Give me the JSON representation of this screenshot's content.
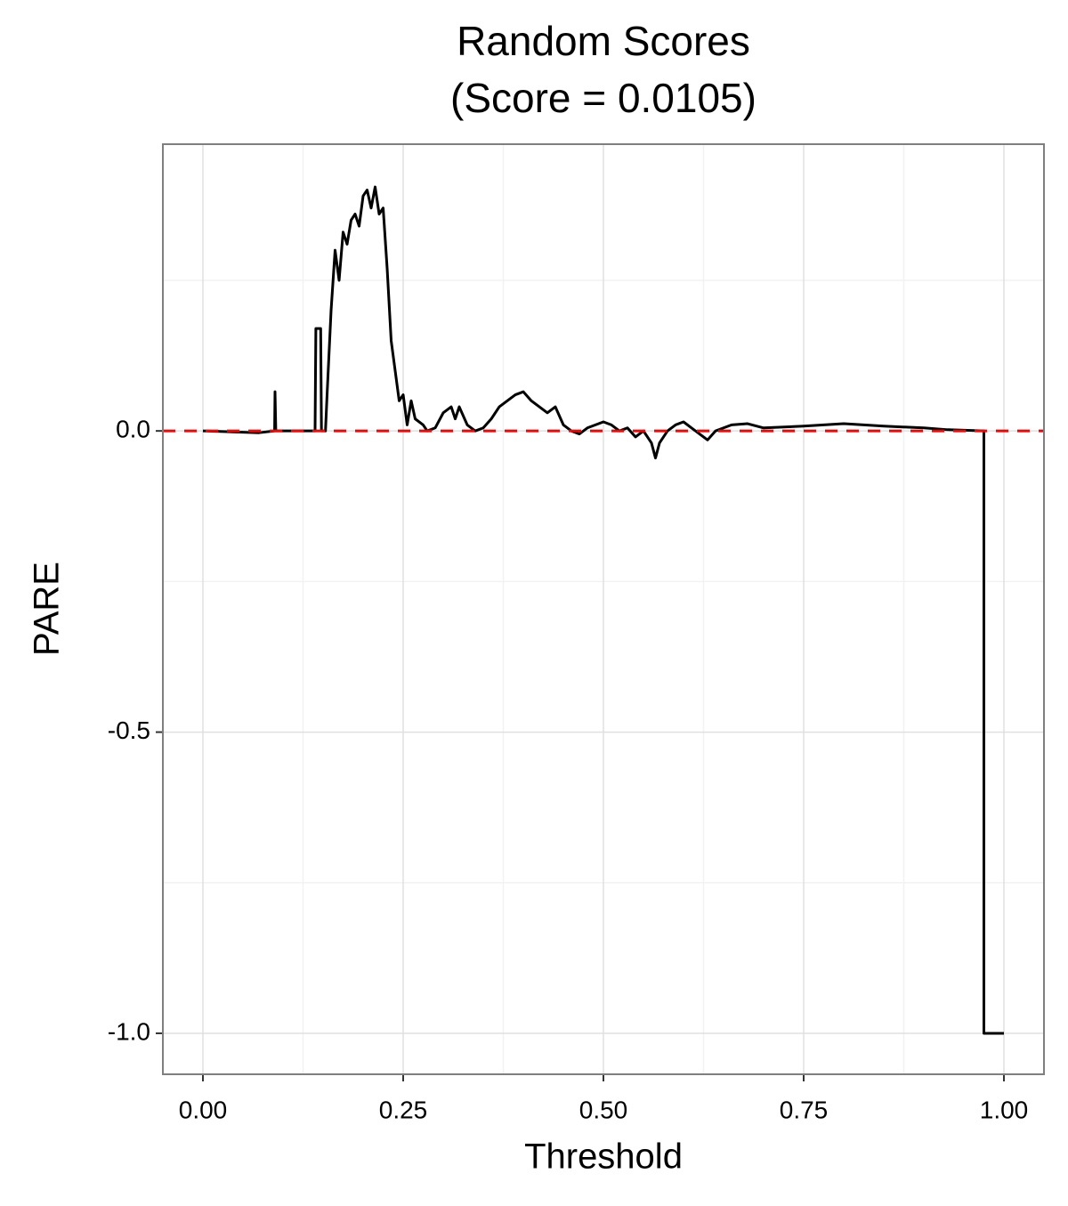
{
  "chart_data": {
    "type": "line",
    "title": "Random Scores",
    "subtitle": "(Score = 0.0105)",
    "x_label": "Threshold",
    "y_label": "PARE",
    "xlim": [
      -0.05,
      1.05
    ],
    "ylim": [
      -1.068,
      0.476
    ],
    "xticks": [
      {
        "value": 0,
        "label": "0.00"
      },
      {
        "value": 0.25,
        "label": "0.25"
      },
      {
        "value": 0.5,
        "label": "0.50"
      },
      {
        "value": 0.75,
        "label": "0.75"
      },
      {
        "value": 1,
        "label": "1.00"
      }
    ],
    "yticks": [
      {
        "value": -1,
        "label": "-1.0"
      },
      {
        "value": -0.5,
        "label": "-0.5"
      },
      {
        "value": 0,
        "label": "0.0"
      }
    ],
    "x_minor_grid": [
      0.125,
      0.375,
      0.625,
      0.875
    ],
    "y_minor_grid": [
      -0.75,
      -0.25,
      0.25
    ],
    "grid": true,
    "hline": {
      "value": 0,
      "color": "#ff0000"
    },
    "series": [
      {
        "name": "PARE",
        "color": "#000000",
        "x": [
          0,
          0.07,
          0.0895,
          0.09,
          0.091,
          0.14,
          0.141,
          0.147,
          0.148,
          0.153,
          0.155,
          0.16,
          0.165,
          0.17,
          0.175,
          0.18,
          0.185,
          0.19,
          0.195,
          0.2,
          0.205,
          0.21,
          0.215,
          0.22,
          0.225,
          0.23,
          0.235,
          0.24,
          0.245,
          0.25,
          0.255,
          0.26,
          0.265,
          0.275,
          0.28,
          0.29,
          0.3,
          0.31,
          0.315,
          0.32,
          0.33,
          0.34,
          0.35,
          0.36,
          0.37,
          0.38,
          0.39,
          0.4,
          0.41,
          0.42,
          0.43,
          0.44,
          0.45,
          0.46,
          0.47,
          0.48,
          0.49,
          0.5,
          0.51,
          0.52,
          0.53,
          0.54,
          0.55,
          0.56,
          0.565,
          0.57,
          0.58,
          0.59,
          0.6,
          0.61,
          0.62,
          0.63,
          0.64,
          0.65,
          0.66,
          0.68,
          0.7,
          0.75,
          0.8,
          0.85,
          0.9,
          0.93,
          0.975,
          0.975,
          1.0
        ],
        "values": [
          0,
          -0.003,
          0,
          0.065,
          0,
          0,
          0.17,
          0.17,
          0,
          0,
          0.06,
          0.2,
          0.3,
          0.25,
          0.33,
          0.31,
          0.35,
          0.36,
          0.34,
          0.39,
          0.4,
          0.37,
          0.405,
          0.36,
          0.37,
          0.27,
          0.15,
          0.1,
          0.05,
          0.06,
          0.01,
          0.05,
          0.02,
          0.01,
          0,
          0.005,
          0.03,
          0.04,
          0.02,
          0.04,
          0.01,
          0,
          0.005,
          0.02,
          0.04,
          0.05,
          0.06,
          0.065,
          0.05,
          0.04,
          0.03,
          0.04,
          0.01,
          0,
          -0.005,
          0.005,
          0.01,
          0.015,
          0.01,
          0,
          0.005,
          -0.01,
          0,
          -0.02,
          -0.045,
          -0.02,
          0,
          0.01,
          0.015,
          0.005,
          -0.005,
          -0.015,
          0,
          0.005,
          0.01,
          0.012,
          0.005,
          0.008,
          0.012,
          0.008,
          0.005,
          0.002,
          0,
          -1,
          -1
        ]
      }
    ]
  }
}
